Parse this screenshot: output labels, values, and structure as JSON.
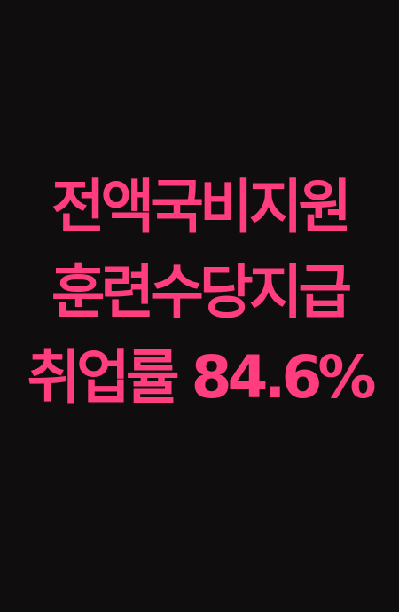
{
  "text_color": "#ff3d7f",
  "background_color": "#100d0e",
  "lines": [
    "전액국비지원",
    "훈련수당지급",
    "취업률 84.6%"
  ]
}
